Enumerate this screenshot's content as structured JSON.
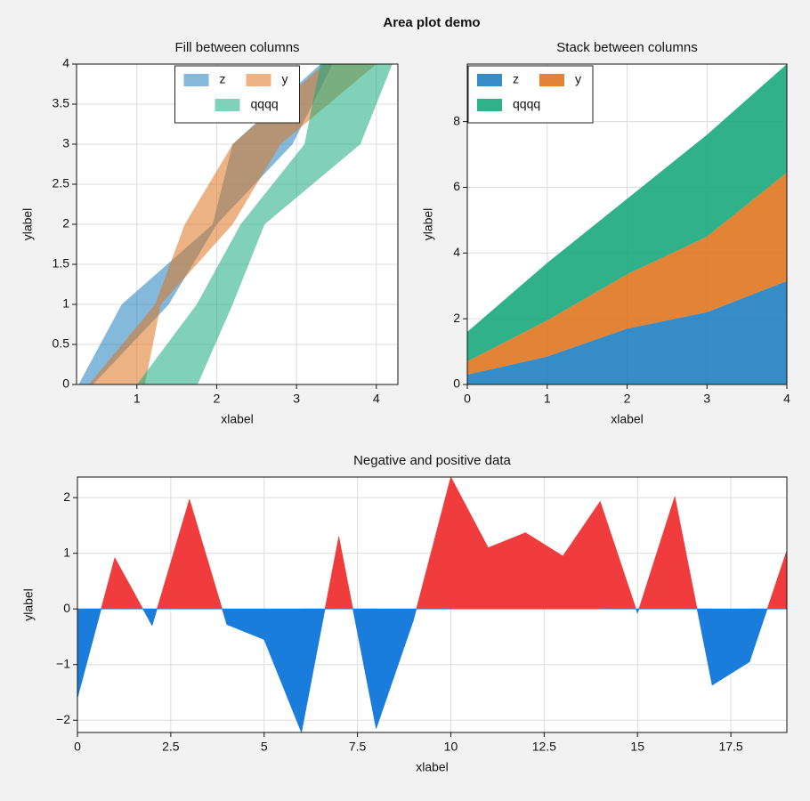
{
  "title": "Area plot demo",
  "chart_data": [
    {
      "type": "fill_betweenx",
      "title": "Fill between columns",
      "xlabel": "xlabel",
      "ylabel": "ylabel",
      "y": [
        0,
        1,
        2,
        3,
        4
      ],
      "series": [
        {
          "name": "z",
          "color": "#1f80c0",
          "x1": [
            0.27,
            0.81,
            1.95,
            2.2,
            3.3
          ],
          "x2": [
            0.45,
            1.4,
            2.0,
            2.95,
            3.45
          ]
        },
        {
          "name": "y",
          "color": "#df7520",
          "x1": [
            0.4,
            1.23,
            1.6,
            2.2,
            3.35
          ],
          "x2": [
            1.1,
            1.3,
            2.2,
            2.8,
            4.0
          ]
        },
        {
          "name": "qqqq",
          "color": "#1aa97d",
          "x1": [
            1.0,
            1.75,
            2.3,
            3.1,
            3.3
          ],
          "x2": [
            1.76,
            2.2,
            2.6,
            3.8,
            4.2
          ]
        }
      ],
      "alpha": 0.55,
      "xlim": [
        0.244,
        4.27
      ],
      "ylim": [
        0,
        4
      ],
      "xticks": [
        1,
        2,
        3,
        4
      ],
      "yticks": [
        0,
        0.5,
        1,
        1.5,
        2,
        2.5,
        3,
        3.5,
        4
      ],
      "grid": true,
      "legend": "upper center",
      "legend_ncols": 2
    },
    {
      "type": "stacked_area",
      "title": "Stack between columns",
      "xlabel": "xlabel",
      "ylabel": "ylabel",
      "x": [
        0,
        1,
        2,
        3,
        4
      ],
      "series": [
        {
          "name": "z",
          "color": "#1f80c0",
          "values": [
            0.3,
            0.85,
            1.7,
            2.2,
            3.15
          ]
        },
        {
          "name": "y",
          "color": "#df7520",
          "values": [
            0.4,
            1.1,
            1.65,
            2.3,
            3.3
          ]
        },
        {
          "name": "qqqq",
          "color": "#1aa97d",
          "values": [
            0.9,
            1.75,
            2.3,
            3.1,
            3.3
          ]
        }
      ],
      "alpha": 0.9,
      "xlim": [
        0,
        4
      ],
      "ylim": [
        0,
        9.75
      ],
      "xticks": [
        0,
        1,
        2,
        3,
        4
      ],
      "yticks": [
        0,
        2,
        4,
        6,
        8
      ],
      "grid": true,
      "legend": "upper left",
      "legend_ncols": 2
    },
    {
      "type": "negpos_area",
      "title": "Negative and positive data",
      "xlabel": "xlabel",
      "ylabel": "ylabel",
      "x": [
        0,
        1,
        2,
        3,
        4,
        5,
        6,
        7,
        8,
        9,
        10,
        11,
        12,
        13,
        14,
        15,
        16,
        17,
        18,
        19
      ],
      "values": [
        -1.6,
        0.92,
        -0.3,
        1.97,
        -0.28,
        -0.55,
        -2.22,
        1.3,
        -2.15,
        -0.2,
        2.37,
        1.1,
        1.37,
        0.95,
        1.93,
        -0.08,
        2.02,
        -1.37,
        -0.95,
        1.05
      ],
      "poscolor": "#f03c3c",
      "negcolor": "#1a7ddb",
      "xlim": [
        0,
        19
      ],
      "ylim": [
        -2.22,
        2.37
      ],
      "xticks": [
        0,
        2.5,
        5,
        7.5,
        10,
        12.5,
        15,
        17.5
      ],
      "yticks": [
        {
          "value": -2,
          "label": "−2"
        },
        {
          "value": -1,
          "label": "−1"
        },
        0,
        1,
        2
      ],
      "grid": true
    }
  ]
}
